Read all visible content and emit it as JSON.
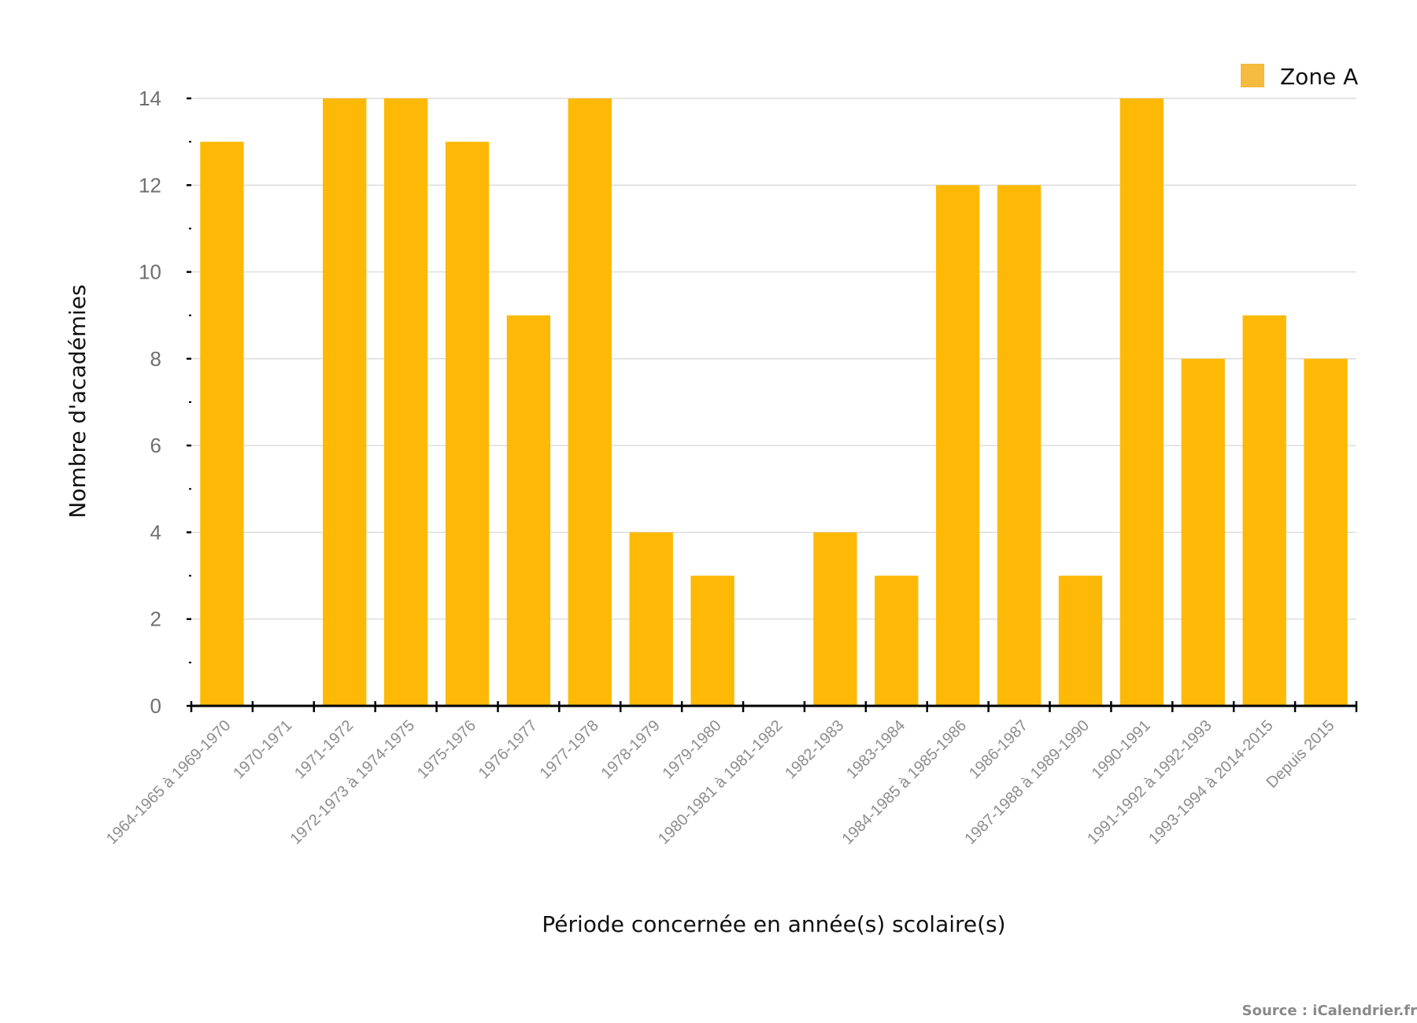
{
  "chart_data": {
    "type": "bar",
    "xlabel": "Période concernée en année(s) scolaire(s)",
    "ylabel": "Nombre d'académies",
    "ylim": [
      0,
      14
    ],
    "yticks": [
      0,
      2,
      4,
      6,
      8,
      10,
      12,
      14
    ],
    "grid": true,
    "legend_position": "top-right",
    "categories": [
      "1964-1965 à 1969-1970",
      "1970-1971",
      "1971-1972",
      "1972-1973 à 1974-1975",
      "1975-1976",
      "1976-1977",
      "1977-1978",
      "1978-1979",
      "1979-1980",
      "1980-1981 à 1981-1982",
      "1982-1983",
      "1983-1984",
      "1984-1985 à 1985-1986",
      "1986-1987",
      "1987-1988 à 1989-1990",
      "1990-1991",
      "1991-1992 à 1992-1993",
      "1993-1994 à 2014-2015",
      "Depuis 2015"
    ],
    "series": [
      {
        "name": "Zone A",
        "color": "#FDB905",
        "legend_color": "#F5BB3E",
        "values": [
          13,
          0,
          14,
          14,
          13,
          9,
          14,
          4,
          3,
          0,
          4,
          3,
          12,
          12,
          3,
          14,
          8,
          9,
          8
        ]
      }
    ]
  },
  "source": "Source : iCalendrier.fr"
}
